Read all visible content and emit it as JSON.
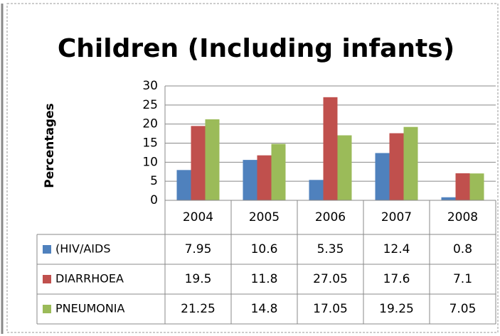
{
  "chart_data": {
    "type": "bar",
    "title": "Children (Including infants)",
    "y_label": "Percentages",
    "categories": [
      "2004",
      "2005",
      "2006",
      "2007",
      "2008"
    ],
    "series": [
      {
        "name": "(HIV/AIDS",
        "color": "#4f81bd",
        "values": [
          7.95,
          10.6,
          5.35,
          12.4,
          0.8
        ]
      },
      {
        "name": "DIARRHOEA",
        "color": "#c0504d",
        "values": [
          19.5,
          11.8,
          27.05,
          17.6,
          7.1
        ]
      },
      {
        "name": "PNEUMONIA",
        "color": "#9bbb59",
        "values": [
          21.25,
          14.8,
          17.05,
          19.25,
          7.05
        ]
      }
    ],
    "ylim": [
      0,
      30
    ],
    "yticks": [
      0,
      5,
      10,
      15,
      20,
      25,
      30
    ],
    "grid": true,
    "data_table": true
  }
}
